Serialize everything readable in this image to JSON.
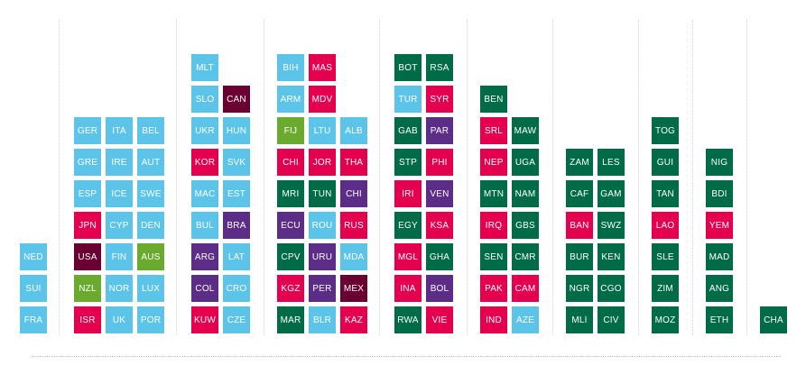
{
  "colors": {
    "blue": "#5bc4e8",
    "green": "#006b47",
    "pink": "#e5004f",
    "purple": "#5c2d86",
    "maroon": "#6a0032",
    "lime": "#6aab2f"
  },
  "chart_data": {
    "type": "table",
    "title": "",
    "grid": false,
    "columns": [
      {
        "stacks": [
          {
            "tiles": [
              {
                "label": "FRA",
                "color": "blue"
              },
              {
                "label": "SUI",
                "color": "blue"
              },
              {
                "label": "NED",
                "color": "blue"
              }
            ]
          }
        ]
      },
      {
        "stacks": [
          {
            "tiles": [
              {
                "label": "ISR",
                "color": "pink"
              },
              {
                "label": "NZL",
                "color": "lime"
              },
              {
                "label": "USA",
                "color": "maroon"
              },
              {
                "label": "JPN",
                "color": "pink"
              },
              {
                "label": "ESP",
                "color": "blue"
              },
              {
                "label": "GRE",
                "color": "blue"
              },
              {
                "label": "GER",
                "color": "blue"
              }
            ]
          },
          {
            "tiles": [
              {
                "label": "UK",
                "color": "blue"
              },
              {
                "label": "NOR",
                "color": "blue"
              },
              {
                "label": "FIN",
                "color": "blue"
              },
              {
                "label": "CYP",
                "color": "blue"
              },
              {
                "label": "ICE",
                "color": "blue"
              },
              {
                "label": "IRE",
                "color": "blue"
              },
              {
                "label": "ITA",
                "color": "blue"
              }
            ]
          },
          {
            "tiles": [
              {
                "label": "POR",
                "color": "blue"
              },
              {
                "label": "LUX",
                "color": "blue"
              },
              {
                "label": "AUS",
                "color": "lime"
              },
              {
                "label": "DEN",
                "color": "blue"
              },
              {
                "label": "SWE",
                "color": "blue"
              },
              {
                "label": "AUT",
                "color": "blue"
              },
              {
                "label": "BEL",
                "color": "blue"
              }
            ]
          }
        ]
      },
      {
        "stacks": [
          {
            "tiles": [
              {
                "label": "KUW",
                "color": "pink"
              },
              {
                "label": "COL",
                "color": "purple"
              },
              {
                "label": "ARG",
                "color": "purple"
              },
              {
                "label": "BUL",
                "color": "blue"
              },
              {
                "label": "MAC",
                "color": "blue"
              },
              {
                "label": "KOR",
                "color": "pink"
              },
              {
                "label": "UKR",
                "color": "blue"
              },
              {
                "label": "SLO",
                "color": "blue"
              },
              {
                "label": "MLT",
                "color": "blue"
              }
            ]
          },
          {
            "tiles": [
              {
                "label": "CZE",
                "color": "blue"
              },
              {
                "label": "CRO",
                "color": "blue"
              },
              {
                "label": "LAT",
                "color": "blue"
              },
              {
                "label": "BRA",
                "color": "purple"
              },
              {
                "label": "EST",
                "color": "blue"
              },
              {
                "label": "SVK",
                "color": "blue"
              },
              {
                "label": "HUN",
                "color": "blue"
              },
              {
                "label": "CAN",
                "color": "maroon"
              }
            ]
          }
        ]
      },
      {
        "stacks": [
          {
            "tiles": [
              {
                "label": "MAR",
                "color": "green"
              },
              {
                "label": "KGZ",
                "color": "pink"
              },
              {
                "label": "CPV",
                "color": "green"
              },
              {
                "label": "ECU",
                "color": "purple"
              },
              {
                "label": "MRI",
                "color": "green"
              },
              {
                "label": "CHI",
                "color": "pink"
              },
              {
                "label": "FIJ",
                "color": "lime"
              },
              {
                "label": "ARM",
                "color": "blue"
              },
              {
                "label": "BIH",
                "color": "blue"
              }
            ]
          },
          {
            "tiles": [
              {
                "label": "BLR",
                "color": "blue"
              },
              {
                "label": "PER",
                "color": "purple"
              },
              {
                "label": "URU",
                "color": "purple"
              },
              {
                "label": "ROU",
                "color": "blue"
              },
              {
                "label": "TUN",
                "color": "green"
              },
              {
                "label": "JOR",
                "color": "pink"
              },
              {
                "label": "LTU",
                "color": "blue"
              },
              {
                "label": "MDV",
                "color": "pink"
              },
              {
                "label": "MAS",
                "color": "pink"
              }
            ]
          },
          {
            "tiles": [
              {
                "label": "KAZ",
                "color": "pink"
              },
              {
                "label": "MEX",
                "color": "maroon"
              },
              {
                "label": "MDA",
                "color": "blue"
              },
              {
                "label": "RUS",
                "color": "pink"
              },
              {
                "label": "CHI",
                "color": "purple"
              },
              {
                "label": "THA",
                "color": "pink"
              },
              {
                "label": "ALB",
                "color": "blue"
              }
            ]
          }
        ]
      },
      {
        "stacks": [
          {
            "tiles": [
              {
                "label": "RWA",
                "color": "green"
              },
              {
                "label": "INA",
                "color": "pink"
              },
              {
                "label": "MGL",
                "color": "pink"
              },
              {
                "label": "EGY",
                "color": "green"
              },
              {
                "label": "IRI",
                "color": "pink"
              },
              {
                "label": "STP",
                "color": "green"
              },
              {
                "label": "GAB",
                "color": "green"
              },
              {
                "label": "TUR",
                "color": "blue"
              },
              {
                "label": "BOT",
                "color": "green"
              }
            ]
          },
          {
            "tiles": [
              {
                "label": "VIE",
                "color": "pink"
              },
              {
                "label": "BOL",
                "color": "purple"
              },
              {
                "label": "GHA",
                "color": "green"
              },
              {
                "label": "KSA",
                "color": "pink"
              },
              {
                "label": "VEN",
                "color": "purple"
              },
              {
                "label": "PHI",
                "color": "pink"
              },
              {
                "label": "PAR",
                "color": "purple"
              },
              {
                "label": "SYR",
                "color": "pink"
              },
              {
                "label": "RSA",
                "color": "green"
              }
            ]
          }
        ]
      },
      {
        "stacks": [
          {
            "tiles": [
              {
                "label": "IND",
                "color": "pink"
              },
              {
                "label": "PAK",
                "color": "pink"
              },
              {
                "label": "SEN",
                "color": "green"
              },
              {
                "label": "IRQ",
                "color": "pink"
              },
              {
                "label": "MTN",
                "color": "green"
              },
              {
                "label": "NEP",
                "color": "pink"
              },
              {
                "label": "SRL",
                "color": "pink"
              },
              {
                "label": "BEN",
                "color": "green"
              }
            ]
          },
          {
            "tiles": [
              {
                "label": "AZE",
                "color": "blue"
              },
              {
                "label": "CAM",
                "color": "pink"
              },
              {
                "label": "CMR",
                "color": "green"
              },
              {
                "label": "GBS",
                "color": "green"
              },
              {
                "label": "NAM",
                "color": "green"
              },
              {
                "label": "UGA",
                "color": "green"
              },
              {
                "label": "MAW",
                "color": "green"
              }
            ]
          }
        ]
      },
      {
        "stacks": [
          {
            "tiles": [
              {
                "label": "MLI",
                "color": "green"
              },
              {
                "label": "NGR",
                "color": "green"
              },
              {
                "label": "BUR",
                "color": "green"
              },
              {
                "label": "BAN",
                "color": "pink"
              },
              {
                "label": "CAF",
                "color": "green"
              },
              {
                "label": "ZAM",
                "color": "green"
              }
            ]
          },
          {
            "tiles": [
              {
                "label": "CIV",
                "color": "green"
              },
              {
                "label": "CGO",
                "color": "green"
              },
              {
                "label": "KEN",
                "color": "green"
              },
              {
                "label": "SWZ",
                "color": "green"
              },
              {
                "label": "GAM",
                "color": "green"
              },
              {
                "label": "LES",
                "color": "green"
              }
            ]
          }
        ]
      },
      {
        "stacks": [
          {
            "tiles": [
              {
                "label": "MOZ",
                "color": "green"
              },
              {
                "label": "ZIM",
                "color": "green"
              },
              {
                "label": "SLE",
                "color": "green"
              },
              {
                "label": "LAO",
                "color": "pink"
              },
              {
                "label": "TAN",
                "color": "green"
              },
              {
                "label": "GUI",
                "color": "green"
              },
              {
                "label": "TOG",
                "color": "green"
              }
            ]
          }
        ]
      },
      {
        "stacks": [
          {
            "tiles": [
              {
                "label": "ETH",
                "color": "green"
              },
              {
                "label": "ANG",
                "color": "green"
              },
              {
                "label": "MAD",
                "color": "green"
              },
              {
                "label": "YEM",
                "color": "pink"
              },
              {
                "label": "BDI",
                "color": "green"
              },
              {
                "label": "NIG",
                "color": "green"
              }
            ]
          }
        ]
      },
      {
        "stacks": [
          {
            "tiles": [
              {
                "label": "CHA",
                "color": "green"
              }
            ]
          }
        ]
      }
    ]
  }
}
